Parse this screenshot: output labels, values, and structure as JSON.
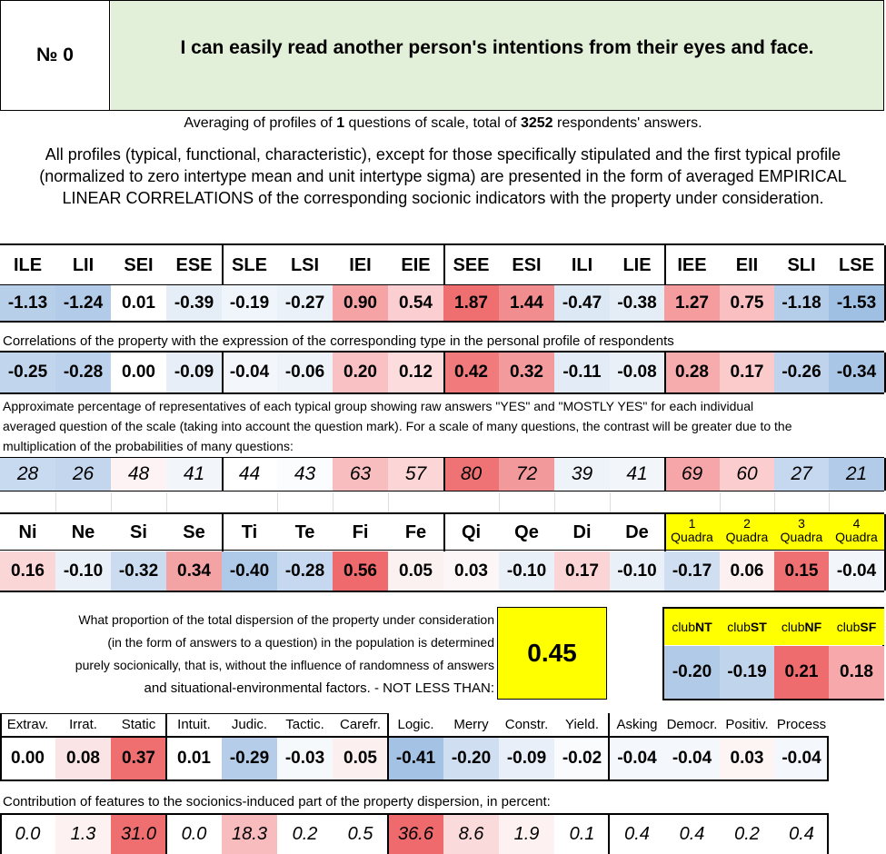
{
  "header": {
    "number_label": "№ 0",
    "question": "I can easily read another person's intentions from their eyes and face."
  },
  "summary": {
    "prefix": "Averaging of profiles of ",
    "questions": "1",
    "middle": " questions of scale, total of ",
    "respondents": "3252",
    "suffix": " respondents' answers."
  },
  "description": [
    "All profiles (typical, functional, characteristic), except for those specifically stipulated and the first typical profile",
    "(normalized to zero intertype mean and unit intertype sigma) are presented in the form of averaged EMPIRICAL",
    "LINEAR CORRELATIONS of the corresponding socionic indicators with the property under consideration."
  ],
  "types": {
    "headers": [
      "ILE",
      "LII",
      "SEI",
      "ESE",
      "SLE",
      "LSI",
      "IEI",
      "EIE",
      "SEE",
      "ESI",
      "ILI",
      "LIE",
      "IEE",
      "EII",
      "SLI",
      "LSE"
    ],
    "normalized": [
      "-1.13",
      "-1.24",
      "0.01",
      "-0.39",
      "-0.19",
      "-0.27",
      "0.90",
      "0.54",
      "1.87",
      "1.44",
      "-0.47",
      "-0.38",
      "1.27",
      "0.75",
      "-1.18",
      "-1.53"
    ],
    "normalized_colors": [
      "#b8cfea",
      "#b1cbe8",
      "#ffffff",
      "#e5edf7",
      "#f0f5fb",
      "#ebf1f9",
      "#f6a3a5",
      "#fbcfd1",
      "#ef6f71",
      "#f28d8f",
      "#dde8f5",
      "#e4ecf6",
      "#f49c9e",
      "#f9bfc1",
      "#b4cde9",
      "#9fbfe3"
    ],
    "correlation_caption": "Correlations of the property with the expression of the corresponding type in the personal profile of respondents",
    "correlations": [
      "-0.25",
      "-0.28",
      "0.00",
      "-0.09",
      "-0.04",
      "-0.06",
      "0.20",
      "0.12",
      "0.42",
      "0.32",
      "-0.11",
      "-0.08",
      "0.28",
      "0.17",
      "-0.26",
      "-0.34"
    ],
    "correlation_colors": [
      "#c1d5ed",
      "#bcd1eb",
      "#ffffff",
      "#e7eef7",
      "#f3f7fc",
      "#eef3fa",
      "#f9c1c3",
      "#fcdcdd",
      "#f07a7c",
      "#f39a9c",
      "#e2ebf6",
      "#e9f0f8",
      "#f6abad",
      "#fbcacb",
      "#bfd3ec",
      "#aac6e6"
    ],
    "percent_caption": [
      "Approximate percentage of representatives of each typical group showing raw answers \"YES\" and \"MOSTLY YES\" for each individual",
      "averaged question of the scale (taking into account the question mark). For a scale of many questions, the contrast will be greater due to the",
      "multiplication of the probabilities of many questions:"
    ],
    "percents": [
      "28",
      "26",
      "48",
      "41",
      "44",
      "43",
      "63",
      "57",
      "80",
      "72",
      "39",
      "41",
      "69",
      "60",
      "27",
      "21"
    ],
    "percent_colors": [
      "#c8daf0",
      "#c3d6ee",
      "#fdf3f4",
      "#f2f6fb",
      "#ffffff",
      "#fbfcfe",
      "#f8bdbf",
      "#fcd6d7",
      "#ef7375",
      "#f2999b",
      "#eef3fa",
      "#f2f6fb",
      "#f6a6a8",
      "#fbcdce",
      "#c5d8ef",
      "#b2cbe8"
    ]
  },
  "functions": {
    "headers": [
      "Ni",
      "Ne",
      "Si",
      "Se",
      "Ti",
      "Te",
      "Fi",
      "Fe",
      "Qi",
      "Qe",
      "Di",
      "De"
    ],
    "values": [
      "0.16",
      "-0.10",
      "-0.32",
      "0.34",
      "-0.40",
      "-0.28",
      "0.56",
      "0.05",
      "0.03",
      "-0.10",
      "0.17",
      "-0.10"
    ],
    "colors": [
      "#fbd6d7",
      "#eaf0f8",
      "#cbdcf0",
      "#f4a3a5",
      "#afc9e8",
      "#c5d8ef",
      "#ee6a6c",
      "#fcf1f1",
      "#fdf6f6",
      "#eaf0f8",
      "#fbd4d5",
      "#eaf0f8"
    ]
  },
  "quadras": {
    "numbers": [
      "1",
      "2",
      "3",
      "4"
    ],
    "label": "Quadra",
    "values": [
      "-0.17",
      "0.06",
      "0.15",
      "-0.04"
    ],
    "colors": [
      "#cfdef1",
      "#fdf0f0",
      "#ef7072",
      "#f2f6fb"
    ],
    "header_color": "#ffff00"
  },
  "dispersion": {
    "text": [
      "What proportion of the total dispersion of the property under consideration",
      "(in the form of answers to a question) in the population is determined",
      "purely socionically, that is, without the influence of randomness of answers",
      "and situational-environmental factors. - NOT LESS THAN:"
    ],
    "value": "0.45",
    "box_color": "#ffff00"
  },
  "clubs": {
    "prefix": "club",
    "names": [
      "NT",
      "ST",
      "NF",
      "SF"
    ],
    "values": [
      "-0.20",
      "-0.19",
      "0.21",
      "0.18"
    ],
    "colors": [
      "#b1cae8",
      "#c0d4ec",
      "#ef6c6e",
      "#f6a8aa"
    ],
    "header_color": "#ffff00"
  },
  "reinin": {
    "headers": [
      "Extrav.",
      "Irrat.",
      "Static",
      "Intuit.",
      "Judic.",
      "Tactic.",
      "Carefr.",
      "Logic.",
      "Merry",
      "Constr.",
      "Yield.",
      "Asking",
      "Democr.",
      "Positiv.",
      "Process"
    ],
    "values": [
      "0.00",
      "0.08",
      "0.37",
      "0.01",
      "-0.29",
      "-0.03",
      "0.05",
      "-0.41",
      "-0.20",
      "-0.09",
      "-0.02",
      "-0.04",
      "-0.04",
      "0.03",
      "-0.04"
    ],
    "colors": [
      "#ffffff",
      "#fbe4e5",
      "#ef6e70",
      "#ffffff",
      "#b5cde9",
      "#f6f9fc",
      "#fcefef",
      "#a4c2e4",
      "#cfdef1",
      "#e8eff8",
      "#f9fbfd",
      "#f4f7fb",
      "#f4f7fb",
      "#fdf4f4",
      "#f4f7fb"
    ],
    "contribution_caption": "Contribution of features to the socionics-induced part of the property dispersion, in percent:",
    "contributions": [
      "0.0",
      "1.3",
      "31.0",
      "0.0",
      "18.3",
      "0.2",
      "0.5",
      "36.6",
      "8.6",
      "1.9",
      "0.1",
      "0.4",
      "0.4",
      "0.2",
      "0.4"
    ],
    "contribution_colors": [
      "#ffffff",
      "#fdf1f1",
      "#ef6e70",
      "#ffffff",
      "#f8bcbe",
      "#ffffff",
      "#ffffff",
      "#ee6a6c",
      "#fbdadb",
      "#fdf1f1",
      "#ffffff",
      "#ffffff",
      "#ffffff",
      "#ffffff",
      "#ffffff"
    ]
  },
  "colors": {
    "question_bg": "#e2efd9"
  }
}
